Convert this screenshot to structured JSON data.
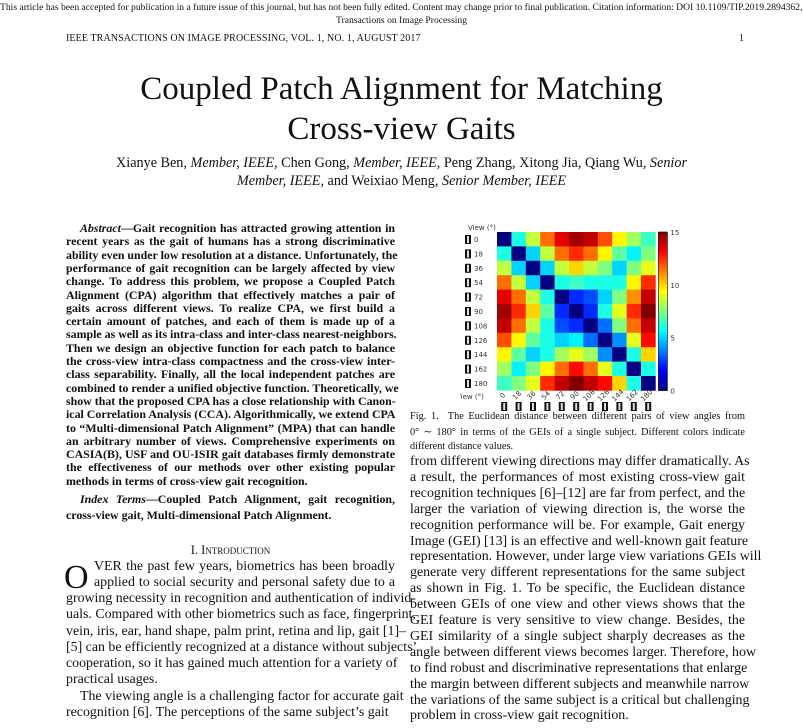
{
  "notice": {
    "line1": "This article has been accepted for publication in a future issue of this journal, but has not been fully edited. Content may change prior to final publication. Citation information: DOI 10.1109/TIP.2019.2894362, IEEE",
    "line2": "Transactions on Image Processing"
  },
  "running_head": {
    "journal": "IEEE TRANSACTIONS ON IMAGE PROCESSING, VOL. 1, NO. 1, AUGUST 2017",
    "page": "1"
  },
  "title": {
    "line1": "Coupled Patch Alignment for Matching",
    "line2": "Cross-view Gaits"
  },
  "authors": {
    "line1": "Xianye Ben, <i>Member, IEEE</i>, Chen Gong, <i>Member, IEEE</i>, Peng Zhang, Xitong Jia, Qiang Wu, <i>Senior</i>",
    "line2": "<i>Member, IEEE</i>, and Weixiao Meng, <i>Senior Member, IEEE</i>"
  },
  "abstract": [
    "<i>Abstract</i>—Gait recognition has attracted growing attention in",
    "recent years as the gait of humans has a strong discriminative",
    "ability even under low resolution at a distance. Unfortunately, the",
    "performance of gait recognition can be largely affected by view",
    "change. To address this problem, we propose a Coupled Patch",
    "Alignment (CPA) algorithm that effectively matches a pair of",
    "gaits across different views. To realize CPA, we first build a",
    "certain amount of patches, and each of them is made up of a",
    "sample as well as its intra-class and inter-class nearest-neighbors.",
    "Then we design an objective function for each patch to balance",
    "the cross-view intra-class compactness and the cross-view inter-",
    "class separability. Finally, all the local independent patches are",
    "combined to render a unified objective function. Theoretically, we",
    "show that the proposed CPA has a close relationship with Canon-",
    "ical Correlation Analysis (CCA). Algorithmically, we extend CPA",
    "to “Multi-dimensional Patch Alignment” (MPA) that can handle",
    "an arbitrary number of views. Comprehensive experiments on",
    "CASIA(B), USF and OU-ISIR gait databases firmly demonstrate",
    "the effectiveness of our methods over other existing popular",
    "methods in terms of cross-view gait recognition."
  ],
  "index_terms": [
    "<i>Index Terms</i>—Coupled Patch Alignment, gait recognition,",
    "cross-view gait, Multi-dimensional Patch Alignment."
  ],
  "section_heading": "I. Introduction",
  "drop_cap": "O",
  "intro": [
    "VER the past few years, biometrics has been broadly",
    "applied to social security and personal safety due to a",
    "growing necessity in recognition and authentication of individ-",
    "uals. Compared with other biometrics such as face, fingerprint,",
    "vein, iris, ear, hand shape, palm print, retina and lip, gait [1]–",
    "[5] can be efficiently recognized at a distance without subjects’",
    "cooperation, so it has gained much attention for a variety of",
    "practical usages.",
    "The viewing angle is a challenging factor for accurate gait",
    "recognition [6]. The perceptions of the same subject’s gait"
  ],
  "caption": [
    "Fig. 1.&nbsp; The Euclidean distance between different pairs of view angles from",
    "0° ∼ 180° in terms of the GEIs of a single subject. Different colors indicate",
    "different distance values."
  ],
  "right_body": [
    "from different viewing directions may differ dramatically. As",
    "a result, the performances of most existing cross-view gait",
    "recognition techniques [6]–[12] are far from perfect, and the",
    "larger the variation of viewing direction is, the worse the",
    "recognition performance will be. For example, Gait energy",
    "Image (GEI) [13] is an effective and well-known gait feature",
    "representation. However, under large view variations GEIs will",
    "generate very different representations for the same subject",
    "as shown in Fig. 1. To be specific, the Euclidean distance",
    "between GEIs of one view and other views shows that the",
    "GEI feature is very sensitive to view change. Besides, the",
    "GEI similarity of a single subject sharply decreases as the",
    "angle between different views becomes larger. Therefore, how",
    "to find robust and discriminative representations that enlarge",
    "the margin between different subjects and meanwhile narrow",
    "the variations of the same subject is a critical but challenging",
    "problem in cross-view gait recognition."
  ],
  "chart_data": {
    "type": "heatmap",
    "xlabel": "View (°)",
    "ylabel": "View (°)",
    "categories": [
      "0",
      "18",
      "36",
      "54",
      "72",
      "90",
      "108",
      "126",
      "144",
      "162",
      "180"
    ],
    "colormap": "jet",
    "clim": [
      0,
      15
    ],
    "colorbar_ticks": [
      "0",
      "5",
      "10",
      "15"
    ],
    "values": [
      [
        0,
        6,
        8.5,
        11.5,
        13.5,
        14.5,
        14,
        12,
        9.5,
        8,
        6.5
      ],
      [
        6,
        0,
        5,
        8.5,
        11.5,
        12.5,
        11.5,
        9.5,
        7,
        5.5,
        7.5
      ],
      [
        8.5,
        5,
        0,
        5,
        8.5,
        10,
        8.5,
        7.5,
        5,
        7.5,
        9
      ],
      [
        11.5,
        8.5,
        5,
        0,
        6,
        6.5,
        6,
        6,
        6,
        9.5,
        12.5
      ],
      [
        13.5,
        11.5,
        8.5,
        6,
        0,
        2.5,
        3,
        5,
        7.5,
        11,
        14
      ],
      [
        14.5,
        12.5,
        10,
        7,
        2.5,
        0,
        2.5,
        6,
        9,
        12.5,
        15
      ],
      [
        14,
        11.5,
        8.5,
        6,
        3,
        2.5,
        0,
        3.5,
        7.5,
        11.5,
        14
      ],
      [
        12,
        9.5,
        7,
        6,
        5,
        5.5,
        3.5,
        0,
        4,
        9,
        13
      ],
      [
        9.5,
        7,
        5,
        6,
        8,
        9,
        8,
        4,
        0,
        6,
        10
      ],
      [
        8,
        5.5,
        7.5,
        9.5,
        11.5,
        13,
        11.5,
        9,
        6,
        0,
        6
      ],
      [
        6.5,
        7.5,
        9,
        12.5,
        14,
        15,
        14,
        13,
        10,
        6,
        0
      ]
    ]
  }
}
